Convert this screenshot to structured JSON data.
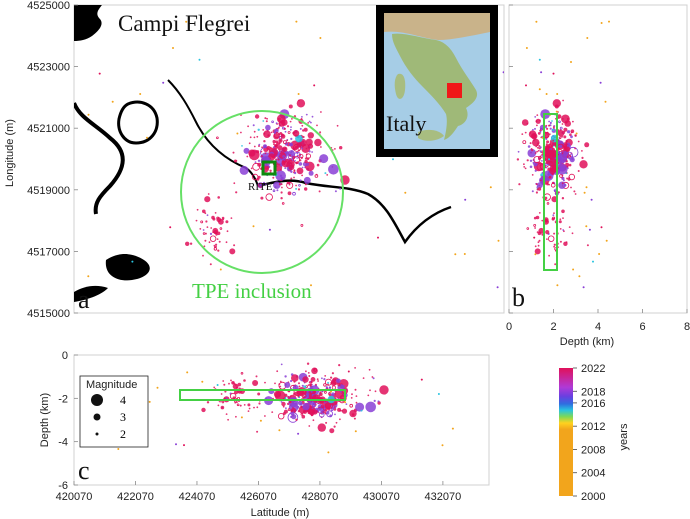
{
  "title": "Campi Flegrei",
  "station": "RITE",
  "circle_label": "TPE inclusion",
  "inset_label": "Italy",
  "panels": {
    "a": "a",
    "b": "b",
    "c": "c"
  },
  "legend": {
    "title": "Magnitude",
    "items": [
      {
        "label": "4",
        "mag": 4
      },
      {
        "label": "3",
        "mag": 3
      },
      {
        "label": "2",
        "mag": 2
      }
    ]
  },
  "colorbar": {
    "label": "years",
    "ticks": [
      "2022",
      "2018",
      "2016",
      "2012",
      "2008",
      "2004",
      "2000"
    ],
    "colors": {
      "2000": "#f2a51c",
      "2012": "#f2a51c",
      "2015": "#29c4e0",
      "2017": "#8a3fd6",
      "2022": "#e0115a"
    }
  },
  "chart_data": [
    {
      "type": "scatter",
      "panel": "a",
      "ylabel": "Longitude (m)",
      "yticks": [
        "4525000",
        "4523000",
        "4521000",
        "4519000",
        "4517000",
        "4515000"
      ],
      "ylim": [
        4515000,
        4525000
      ],
      "clusters": [
        {
          "x": 427800,
          "y": 4520200,
          "count": 360,
          "spread": [
            800,
            650
          ],
          "years": [
            2016,
            2022
          ],
          "mag": [
            0.5,
            3.6
          ]
        },
        {
          "x": 425300,
          "y": 4517600,
          "count": 55,
          "spread": [
            400,
            450
          ],
          "years": [
            2019,
            2022
          ],
          "mag": [
            0.5,
            2.5
          ]
        }
      ]
    },
    {
      "type": "scatter",
      "panel": "b",
      "xlabel": "Depth (km)",
      "xticks": [
        "0",
        "2",
        "4",
        "6",
        "8"
      ],
      "xlim": [
        0,
        8
      ]
    },
    {
      "type": "scatter",
      "panel": "c",
      "xlabel": "Latitude (m)",
      "ylabel": "Depth (km)",
      "xticks": [
        "420070",
        "422070",
        "424070",
        "426070",
        "428070",
        "430070",
        "432070"
      ],
      "yticks": [
        "0",
        "-2",
        "-4",
        "-6"
      ],
      "xlim": [
        420070,
        433570
      ],
      "ylim": [
        -6,
        0
      ]
    }
  ]
}
